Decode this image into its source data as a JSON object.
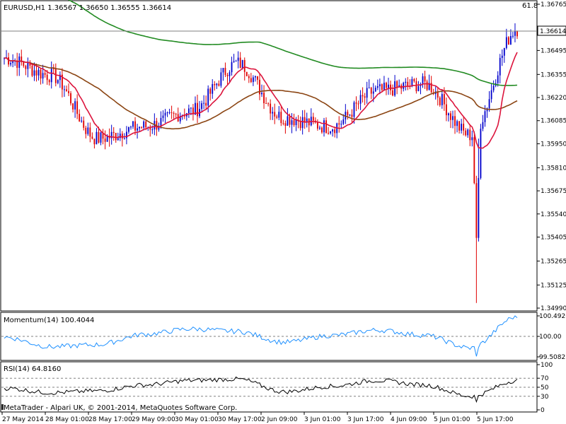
{
  "price_panel": {
    "header": "EURUSD,H1  1.36567 1.36650 1.36555 1.36614",
    "fib_label": "61.8",
    "last_price": "1.36614",
    "y_ticks": [
      "1.36765",
      "1.36495",
      "1.36355",
      "1.36220",
      "1.36085",
      "1.35950",
      "1.35810",
      "1.35675",
      "1.35540",
      "1.35405",
      "1.35265",
      "1.35125",
      "1.34990"
    ],
    "colors": {
      "bull": "#0000cc",
      "bear": "#e00000",
      "sma_fast": "#dc143c",
      "sma_mid": "#8b4513",
      "sma_slow": "#228b22"
    }
  },
  "momentum_panel": {
    "label": "Momentum(14) 100.4044",
    "y_ticks": [
      "100.4926",
      "100.00",
      "99.5082"
    ],
    "color": "#1e90ff"
  },
  "rsi_panel": {
    "label": "RSI(14) 64.8160",
    "y_ticks": [
      "100",
      "70",
      "50",
      "30",
      "0"
    ],
    "color": "#000000"
  },
  "footer": "MetaTrader - Alpari UK, © 2001-2014, MetaQuotes Software Corp.",
  "x_ticks": [
    "27 May 2014",
    "28 May 01:00",
    "28 May 17:00",
    "29 May 09:00",
    "30 May 01:00",
    "30 May 17:00",
    "2 Jun 09:00",
    "3 Jun 01:00",
    "3 Jun 17:00",
    "4 Jun 09:00",
    "5 Jun 01:00",
    "5 Jun 17:00"
  ],
  "chart_data": {
    "type": "line",
    "title": "EURUSD,H1",
    "x": [
      "27 May 2014",
      "28 May 01:00",
      "28 May 17:00",
      "29 May 09:00",
      "30 May 01:00",
      "30 May 17:00",
      "2 Jun 09:00",
      "3 Jun 01:00",
      "3 Jun 17:00",
      "4 Jun 09:00",
      "5 Jun 01:00",
      "5 Jun 17:00"
    ],
    "ylim": [
      1.3499,
      1.36765
    ],
    "series": [
      {
        "values": [
          1.3645,
          1.3635,
          1.3598,
          1.3605,
          1.3614,
          1.3642,
          1.361,
          1.3605,
          1.3626,
          1.363,
          1.36,
          1.3662
        ]
      }
    ],
    "indicators": {
      "momentum": {
        "ylim": [
          99.5082,
          100.4926
        ],
        "values": [
          99.98,
          99.75,
          99.8,
          100.05,
          100.18,
          100.12,
          99.86,
          100.02,
          100.15,
          100.03,
          99.72,
          100.48
        ]
      },
      "rsi": {
        "ylim": [
          0,
          100
        ],
        "values": [
          48,
          38,
          42,
          55,
          65,
          68,
          40,
          52,
          65,
          55,
          30,
          65
        ]
      }
    }
  }
}
